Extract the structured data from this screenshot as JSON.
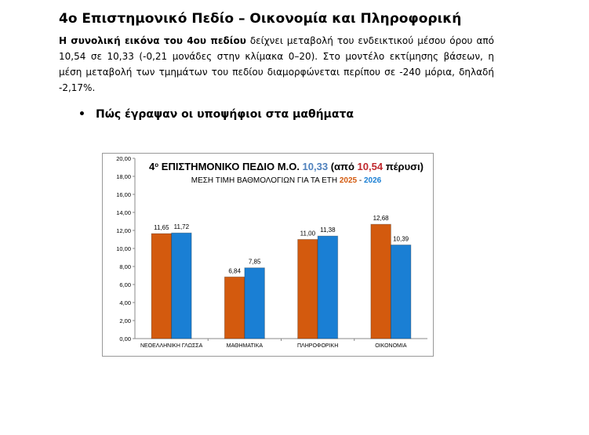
{
  "header": {
    "title": "4ο Επιστημονικό  Πεδίο – Οικονομία και Πληροφορική"
  },
  "paragraph": {
    "bold": "Η συνολική εικόνα του 4ου πεδίου",
    "text": " δείχνει μεταβολή του ενδεικτικού μέσου όρου από 10,54 σε 10,33 (-0,21 μονάδες στην κλίμακα 0–20). Στο μοντέλο εκτίμησης βάσεων, η μέση μεταβολή των τμημάτων του πεδίου διαμορφώνεται περίπου σε -240 μόρια, δηλαδή -2,17%."
  },
  "bullet": "Πώς έγραψαν οι υποψήφιοι στα μαθήματα",
  "chart_data": {
    "type": "bar",
    "title_parts": [
      "4",
      "ο",
      " ΕΠΙΣΤΗΜΟΝΙΚΟ ΠΕΔΙΟ Μ.Ο. ",
      "10,33",
      " (από ",
      "10,54",
      " πέρυσι)"
    ],
    "subtitle_parts": [
      "ΜΕΣΗ ΤΙΜΗ ΒΑΘΜΟΛΟΓΙΩΝ ΓΙΑ ΤΑ ΕΤΗ ",
      " - "
    ],
    "categories": [
      "ΝΕΟΕΛΛΗΝΙΚΗ ΓΛΩΣΣΑ",
      "ΜΑΘΗΜΑΤΙΚΑ",
      "ΠΛΗΡΟΦΟΡΙΚΗ",
      "ΟΙΚΟΝΟΜΙΑ"
    ],
    "series": [
      {
        "name": "2025",
        "color": "#d35a0e",
        "values": [
          11.65,
          6.84,
          11.0,
          12.68
        ],
        "value_labels": [
          "11,65",
          "6,84",
          "11,00",
          "12,68"
        ]
      },
      {
        "name": "2026",
        "color": "#1a7fd4",
        "values": [
          11.72,
          7.85,
          11.38,
          10.39
        ],
        "value_labels": [
          "11,72",
          "7,85",
          "11,38",
          "10,39"
        ]
      }
    ],
    "ylim": [
      0,
      20
    ],
    "yticks": [
      {
        "value": 0,
        "label": "0,00"
      },
      {
        "value": 2,
        "label": "2,00"
      },
      {
        "value": 4,
        "label": "4,00"
      },
      {
        "value": 6,
        "label": "6,00"
      },
      {
        "value": 8,
        "label": "8,00"
      },
      {
        "value": 10,
        "label": "10,00"
      },
      {
        "value": 12,
        "label": "12,00"
      },
      {
        "value": 14,
        "label": "14,00"
      },
      {
        "value": 16,
        "label": "16,00"
      },
      {
        "value": 18,
        "label": "18,00"
      },
      {
        "value": 20,
        "label": "20,00"
      }
    ],
    "grid": false
  }
}
